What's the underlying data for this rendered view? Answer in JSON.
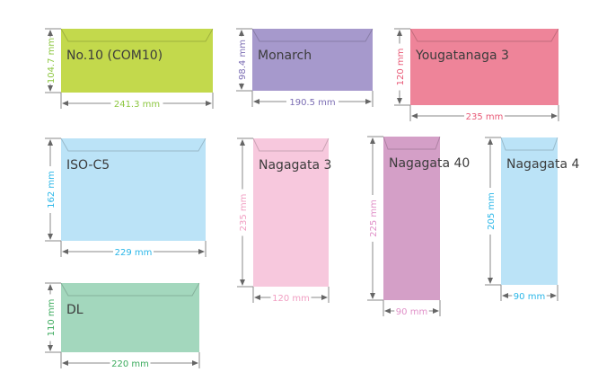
{
  "envelopes": [
    {
      "name": "No.10 (COM10)",
      "width_label": "241.3 mm",
      "height_label": "104.7 mm",
      "fill": "#c3d94c",
      "dim_color": "#8cc63f"
    },
    {
      "name": "Monarch",
      "width_label": "190.5 mm",
      "height_label": "98.4 mm",
      "fill": "#a699cc",
      "dim_color": "#7b6db3"
    },
    {
      "name": "Yougatanaga 3",
      "width_label": "235 mm",
      "height_label": "120 mm",
      "fill": "#ee8499",
      "dim_color": "#e85a77"
    },
    {
      "name": "ISO-C5",
      "width_label": "229 mm",
      "height_label": "162 mm",
      "fill": "#bbe3f7",
      "dim_color": "#29b6e8"
    },
    {
      "name": "Nagagata 3",
      "width_label": "120 mm",
      "height_label": "235 mm",
      "fill": "#f7c8dd",
      "dim_color": "#f19ec2"
    },
    {
      "name": "Nagagata 40",
      "width_label": "90 mm",
      "height_label": "225 mm",
      "fill": "#d49fc7",
      "dim_color": "#e090c8"
    },
    {
      "name": "Nagagata 4",
      "width_label": "90 mm",
      "height_label": "205 mm",
      "fill": "#bbe3f7",
      "dim_color": "#29b6e8"
    },
    {
      "name": "DL",
      "width_label": "220 mm",
      "height_label": "110 mm",
      "fill": "#a3d7bd",
      "dim_color": "#3aaa5c"
    }
  ]
}
